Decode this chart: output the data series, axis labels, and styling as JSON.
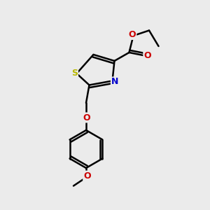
{
  "background_color": "#ebebeb",
  "bond_color": "#000000",
  "atom_colors": {
    "S": "#b8b800",
    "N": "#0000cc",
    "O": "#cc0000",
    "C": "#000000"
  },
  "bond_width": 1.8,
  "figsize": [
    3.0,
    3.0
  ],
  "dpi": 100,
  "xlim": [
    0,
    10
  ],
  "ylim": [
    0,
    10
  ]
}
